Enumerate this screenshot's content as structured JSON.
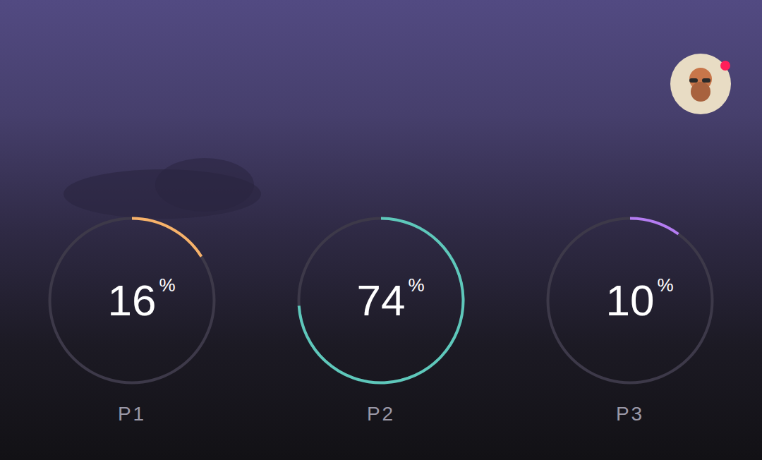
{
  "chart_data": {
    "type": "radial",
    "categories": [
      "P1",
      "P2",
      "P3"
    ],
    "values": [
      16,
      74,
      10
    ],
    "value_labels": [
      "16%",
      "74%",
      "10%"
    ],
    "colors": [
      "#f7b26a",
      "#5ec8bb",
      "#b47cf2"
    ],
    "ylim": [
      0,
      100
    ],
    "data_labels": true
  }
}
